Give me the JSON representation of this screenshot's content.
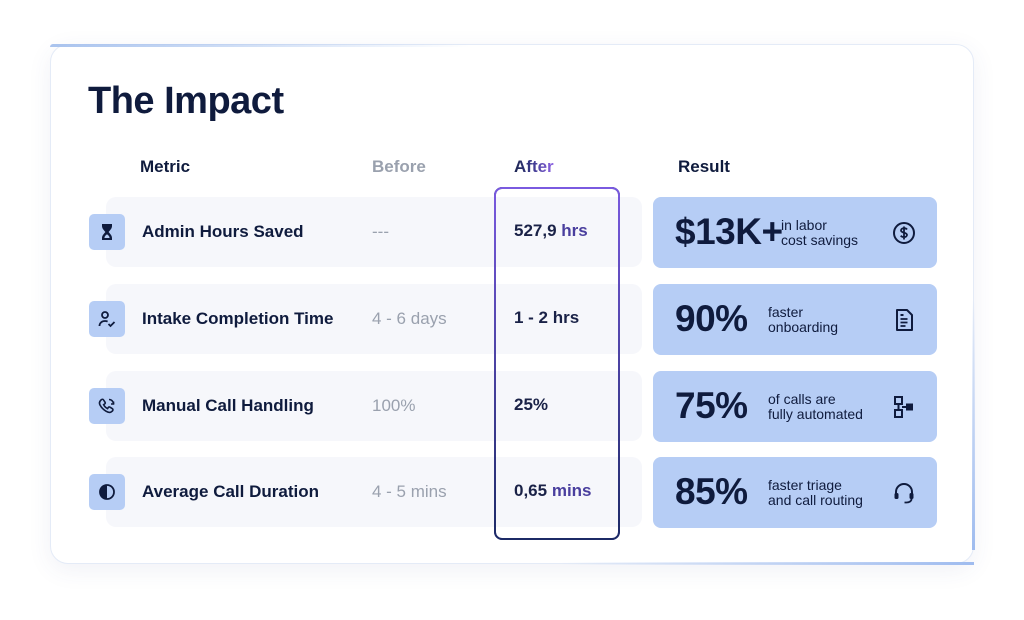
{
  "title": "The Impact",
  "headers": {
    "metric": "Metric",
    "before": "Before",
    "after": "After",
    "result": "Result"
  },
  "rows": [
    {
      "icon": "hourglass-icon",
      "metric": "Admin Hours Saved",
      "before": "---",
      "after_num": "527,9",
      "after_unit": "hrs",
      "result_big": "$13K+",
      "result_line1": "in labor",
      "result_line2": "cost savings",
      "result_icon": "dollar-circle-icon"
    },
    {
      "icon": "user-check-icon",
      "metric": "Intake Completion Time",
      "before": "4 - 6 days",
      "after_num": "1 - 2 hrs",
      "after_unit": "",
      "result_big": "90%",
      "result_line1": "faster",
      "result_line2": "onboarding",
      "result_icon": "document-icon"
    },
    {
      "icon": "phone-refresh-icon",
      "metric": "Manual Call Handling",
      "before": "100%",
      "after_num": "25%",
      "after_unit": "",
      "result_big": "75%",
      "result_line1": "of calls are",
      "result_line2": "fully automated",
      "result_icon": "workflow-icon"
    },
    {
      "icon": "pie-chart-icon",
      "metric": "Average Call Duration",
      "before": "4 - 5 mins",
      "after_num": "0,65",
      "after_unit": "mins",
      "result_big": "85%",
      "result_line1": "faster triage",
      "result_line2": "and call routing",
      "result_icon": "headset-icon"
    }
  ],
  "colors": {
    "navy": "#0f1b3d",
    "muted": "#9aa1ae",
    "result_bg": "#b6cdf5",
    "accent": "#8f63e6"
  }
}
